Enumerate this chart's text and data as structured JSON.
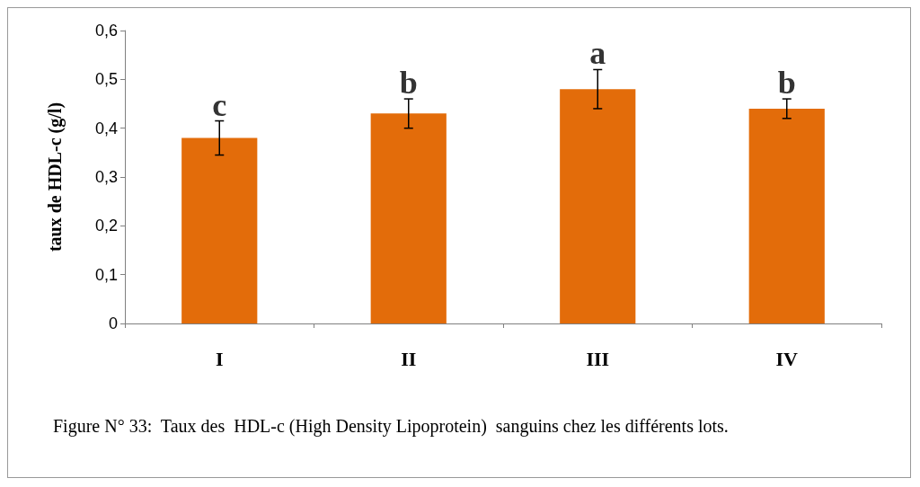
{
  "chart_data": {
    "type": "bar",
    "ylabel": "taux de HDL-c (g/l)",
    "categories": [
      "I",
      "II",
      "III",
      "IV"
    ],
    "values": [
      0.38,
      0.43,
      0.48,
      0.44
    ],
    "errors": [
      0.035,
      0.03,
      0.04,
      0.02
    ],
    "color": "#e36c0a",
    "ylim": [
      0,
      0.6
    ],
    "yticks": [
      {
        "value": 0,
        "label": "0"
      },
      {
        "value": 0.1,
        "label": "0,1"
      },
      {
        "value": 0.2,
        "label": "0,2"
      },
      {
        "value": 0.3,
        "label": "0,3"
      },
      {
        "value": 0.4,
        "label": "0,4"
      },
      {
        "value": 0.5,
        "label": "0,5"
      },
      {
        "value": 0.6,
        "label": "0,6"
      }
    ],
    "grid": false,
    "annotations": [
      {
        "text": "c",
        "x": "I",
        "y": 0.415
      },
      {
        "text": "b",
        "x": "II",
        "y": 0.46
      },
      {
        "text": "a",
        "x": "III",
        "y": 0.52
      },
      {
        "text": "b",
        "x": "IV",
        "y": 0.46
      },
      "Figure N° 33:  Taux des  HDL-c (High Density Lipoprotein)  sanguins chez les différents lots."
    ]
  }
}
